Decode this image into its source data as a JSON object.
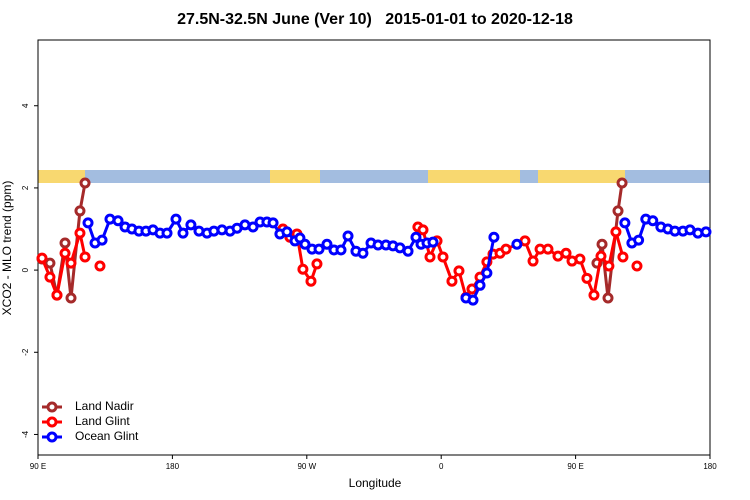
{
  "chart_data": {
    "type": "line",
    "title": "27.5N-32.5N June (Ver 10)   2015-01-01 to 2020-12-18",
    "x_label": "Longitude",
    "y_label": "XCO2 - MLO trend (ppm)",
    "xlim": [
      90,
      540
    ],
    "ylim": [
      -4.5,
      5.6
    ],
    "xticks": [
      {
        "value": 90,
        "label": "90 E"
      },
      180,
      {
        "value": 270,
        "label": "90 W"
      },
      {
        "value": 360,
        "label": "0"
      },
      {
        "value": 450,
        "label": "90 E"
      },
      {
        "value": 540,
        "label": "180"
      }
    ],
    "yticks": [
      -4,
      -2,
      0,
      2,
      4
    ],
    "legend": "bottom-left",
    "series": [
      {
        "name": "Land Nadir",
        "color": "#a52a2a",
        "x": [
          92.7,
          98,
          102.7,
          108.1,
          112.1,
          118.1,
          121.5,
          null,
          464.3,
          467.7,
          471.7,
          478.4,
          481.1
        ],
        "values": [
          0.27,
          0.17,
          -0.61,
          0.66,
          -0.68,
          1.44,
          2.12,
          null,
          0.17,
          0.63,
          -0.68,
          1.44,
          2.12
        ]
      },
      {
        "name": "Land Glint",
        "color": "#ff0000",
        "x": [
          92.7,
          98,
          102.7,
          108.1,
          112.1,
          118.1,
          121.5,
          null,
          131.5,
          null,
          254,
          258.7,
          263.4,
          267.4,
          272.8,
          276.8,
          null,
          344.4,
          347.8,
          352.5,
          357.2,
          361.2,
          367.2,
          371.9,
          376.6,
          380.6,
          386,
          390.6,
          394.7,
          399.4,
          403.4,
          416.1,
          421.5,
          426.2,
          431.5,
          438.2,
          443.6,
          447.6,
          452.9,
          457.6,
          462.3,
          467,
          472.3,
          477,
          481.7,
          null,
          491.1
        ],
        "values": [
          0.29,
          -0.17,
          -0.61,
          0.41,
          0.17,
          0.9,
          0.32,
          null,
          0.1,
          null,
          1.0,
          0.8,
          0.88,
          0.02,
          -0.27,
          0.15,
          null,
          1.05,
          0.98,
          0.32,
          0.71,
          0.32,
          -0.27,
          -0.02,
          -0.66,
          -0.46,
          -0.17,
          0.2,
          0.39,
          0.41,
          0.51,
          0.71,
          0.22,
          0.51,
          0.51,
          0.34,
          0.41,
          0.22,
          0.27,
          -0.2,
          -0.61,
          0.34,
          0.1,
          0.93,
          0.32,
          null,
          0.1
        ]
      },
      {
        "name": "Ocean Glint",
        "color": "#0000ff",
        "x": [
          123.5,
          128.2,
          132.9,
          138.2,
          143.6,
          148.3,
          152.9,
          157.6,
          162.3,
          167,
          171.7,
          176.4,
          182.4,
          187.1,
          192.4,
          197.8,
          203.2,
          207.8,
          213.2,
          218.6,
          223.3,
          228.6,
          234,
          238.7,
          243.3,
          247.4,
          252,
          256.7,
          262.1,
          265.4,
          268.8,
          273.5,
          278.2,
          283.5,
          288.2,
          292.9,
          297.6,
          302.9,
          307.6,
          313,
          317.7,
          323,
          327.7,
          332.4,
          337.8,
          343.1,
          346.5,
          350.5,
          354.5,
          null,
          376.6,
          381.3,
          386,
          390.6,
          395.3,
          null,
          410.7,
          null,
          483,
          487.7,
          492.2,
          497,
          501.7,
          507.1,
          511.8,
          516.5,
          521.9,
          526.6,
          531.9,
          537.3
        ],
        "values": [
          1.15,
          0.66,
          0.73,
          1.24,
          1.2,
          1.05,
          1.0,
          0.95,
          0.95,
          0.98,
          0.9,
          0.9,
          1.24,
          0.9,
          1.1,
          0.95,
          0.9,
          0.95,
          0.98,
          0.95,
          1.02,
          1.1,
          1.05,
          1.17,
          1.17,
          1.15,
          0.88,
          0.93,
          0.71,
          0.78,
          0.63,
          0.51,
          0.51,
          0.63,
          0.49,
          0.49,
          0.83,
          0.46,
          0.41,
          0.66,
          0.61,
          0.61,
          0.59,
          0.54,
          0.46,
          0.8,
          0.63,
          0.66,
          0.68,
          null,
          -0.68,
          -0.73,
          -0.37,
          -0.07,
          0.8,
          null,
          0.63,
          null,
          1.15,
          0.66,
          0.73,
          1.24,
          1.2,
          1.05,
          1.0,
          0.95,
          0.95,
          0.98,
          0.9,
          0.93
        ]
      }
    ]
  }
}
